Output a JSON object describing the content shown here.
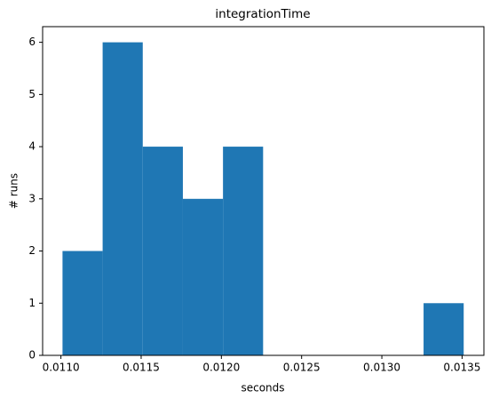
{
  "chart_data": {
    "type": "histogram",
    "title": "integrationTime",
    "xlabel": "seconds",
    "ylabel": "# runs",
    "bins": [
      0.01101,
      0.01126,
      0.01151,
      0.01176,
      0.01201,
      0.01226,
      0.01251,
      0.01276,
      0.01301,
      0.01326,
      0.01351
    ],
    "values": [
      2,
      6,
      4,
      3,
      4,
      0,
      0,
      0,
      0,
      1
    ],
    "color": "#1f77b4",
    "xlim": [
      0.010886,
      0.013636
    ],
    "xticks": [
      {
        "value": 0.011,
        "label": "0.0110"
      },
      {
        "value": 0.0115,
        "label": "0.0115"
      },
      {
        "value": 0.012,
        "label": "0.0120"
      },
      {
        "value": 0.0125,
        "label": "0.0125"
      },
      {
        "value": 0.013,
        "label": "0.0130"
      },
      {
        "value": 0.0135,
        "label": "0.0135"
      }
    ],
    "ylim": [
      0,
      6.3
    ],
    "yticks": [
      0,
      1,
      2,
      3,
      4,
      5,
      6
    ]
  }
}
